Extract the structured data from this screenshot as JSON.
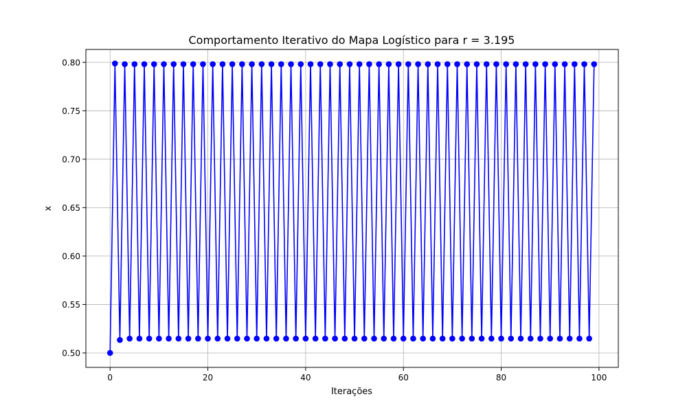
{
  "chart_data": {
    "type": "line",
    "title": "Comportamento Iterativo do Mapa Logístico para r = 3.195",
    "xlabel": "Iterações",
    "ylabel": "x",
    "xlim": [
      -4.95,
      103.95
    ],
    "ylim": [
      0.4851,
      0.8133
    ],
    "xticks": [
      0,
      20,
      40,
      60,
      80,
      100
    ],
    "xtick_labels": [
      "0",
      "20",
      "40",
      "60",
      "80",
      "100"
    ],
    "yticks": [
      0.5,
      0.55,
      0.6,
      0.65,
      0.7,
      0.75,
      0.8
    ],
    "ytick_labels": [
      "0.50",
      "0.55",
      "0.60",
      "0.65",
      "0.70",
      "0.75",
      "0.80"
    ],
    "grid": true,
    "legend": null,
    "series": [
      {
        "color": "#0000ff",
        "marker": "circle",
        "x": [
          0,
          1,
          2,
          3,
          4,
          5,
          6,
          7,
          8,
          9,
          10,
          11,
          12,
          13,
          14,
          15,
          16,
          17,
          18,
          19,
          20,
          21,
          22,
          23,
          24,
          25,
          26,
          27,
          28,
          29,
          30,
          31,
          32,
          33,
          34,
          35,
          36,
          37,
          38,
          39,
          40,
          41,
          42,
          43,
          44,
          45,
          46,
          47,
          48,
          49,
          50,
          51,
          52,
          53,
          54,
          55,
          56,
          57,
          58,
          59,
          60,
          61,
          62,
          63,
          64,
          65,
          66,
          67,
          68,
          69,
          70,
          71,
          72,
          73,
          74,
          75,
          76,
          77,
          78,
          79,
          80,
          81,
          82,
          83,
          84,
          85,
          86,
          87,
          88,
          89,
          90,
          91,
          92,
          93,
          94,
          95,
          96,
          97,
          98,
          99
        ],
        "y": [
          0.5,
          0.7988,
          0.5134,
          0.7981,
          0.5148,
          0.7981,
          0.5148,
          0.7981,
          0.5148,
          0.7981,
          0.5148,
          0.7981,
          0.5148,
          0.7981,
          0.5148,
          0.7981,
          0.5148,
          0.7981,
          0.5148,
          0.7981,
          0.5148,
          0.7981,
          0.5148,
          0.7981,
          0.5148,
          0.7981,
          0.5148,
          0.7981,
          0.5148,
          0.7981,
          0.5148,
          0.7981,
          0.5148,
          0.7981,
          0.5148,
          0.7981,
          0.5148,
          0.7981,
          0.5148,
          0.7981,
          0.5148,
          0.7981,
          0.5148,
          0.7981,
          0.5148,
          0.7981,
          0.5148,
          0.7981,
          0.5148,
          0.7981,
          0.5148,
          0.7981,
          0.5148,
          0.7981,
          0.5148,
          0.7981,
          0.5148,
          0.7981,
          0.5148,
          0.7981,
          0.5148,
          0.7981,
          0.5148,
          0.7981,
          0.5148,
          0.7981,
          0.5148,
          0.7981,
          0.5148,
          0.7981,
          0.5148,
          0.7981,
          0.5148,
          0.7981,
          0.5148,
          0.7981,
          0.5148,
          0.7981,
          0.5148,
          0.7981,
          0.5148,
          0.7981,
          0.5148,
          0.7981,
          0.5148,
          0.7981,
          0.5148,
          0.7981,
          0.5148,
          0.7981,
          0.5148,
          0.7981,
          0.5148,
          0.7981,
          0.5148,
          0.7981,
          0.5148,
          0.7981,
          0.5148,
          0.7981
        ]
      }
    ]
  }
}
